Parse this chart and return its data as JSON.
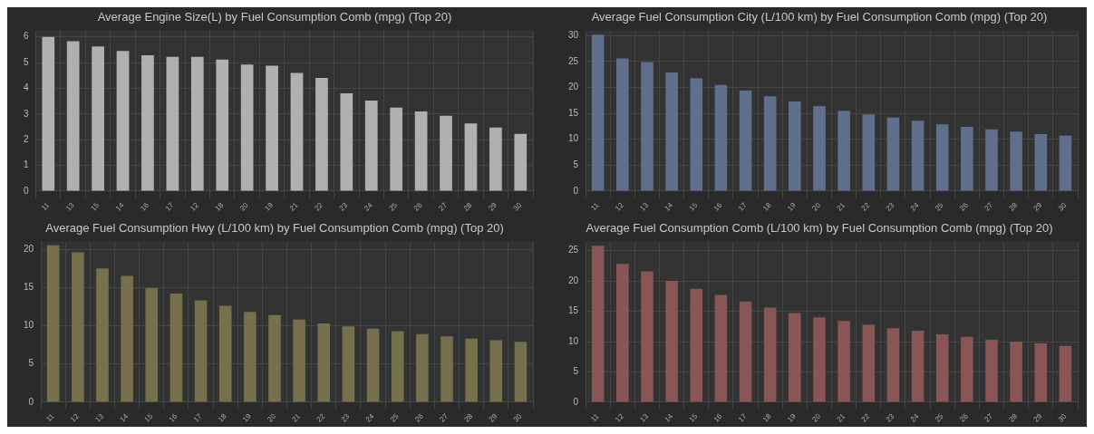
{
  "chart_data": [
    {
      "type": "bar",
      "title": "Average Engine Size(L) by Fuel Consumption Comb (mpg) (Top 20)",
      "categories": [
        "11",
        "13",
        "15",
        "14",
        "16",
        "17",
        "12",
        "18",
        "20",
        "19",
        "21",
        "22",
        "23",
        "24",
        "25",
        "26",
        "27",
        "28",
        "29",
        "30"
      ],
      "values": [
        6.0,
        5.83,
        5.63,
        5.45,
        5.28,
        5.22,
        5.22,
        5.12,
        4.92,
        4.88,
        4.6,
        4.4,
        3.8,
        3.52,
        3.25,
        3.1,
        2.93,
        2.63,
        2.47,
        2.23
      ],
      "color": "#b0b0b0",
      "ylim": [
        0,
        6.25
      ],
      "yticks": [
        0,
        1,
        2,
        3,
        4,
        5,
        6
      ],
      "grid": true,
      "legend": false
    },
    {
      "type": "bar",
      "title": "Average Fuel Consumption City (L/100 km) by Fuel Consumption Comb (mpg) (Top 20)",
      "categories": [
        "11",
        "12",
        "13",
        "14",
        "15",
        "16",
        "17",
        "18",
        "19",
        "20",
        "21",
        "22",
        "23",
        "24",
        "25",
        "26",
        "27",
        "28",
        "29",
        "30"
      ],
      "values": [
        30.2,
        25.6,
        24.9,
        22.9,
        21.8,
        20.5,
        19.4,
        18.3,
        17.3,
        16.4,
        15.5,
        14.8,
        14.2,
        13.6,
        12.9,
        12.4,
        11.9,
        11.5,
        11.0,
        10.7
      ],
      "color": "#5f6f8c",
      "ylim": [
        0,
        31
      ],
      "yticks": [
        0,
        5,
        10,
        15,
        20,
        25,
        30
      ],
      "grid": true,
      "legend": false
    },
    {
      "type": "bar",
      "title": "Average Fuel Consumption Hwy (L/100 km) by Fuel Consumption Comb (mpg) (Top 20)",
      "categories": [
        "11",
        "12",
        "13",
        "14",
        "15",
        "16",
        "17",
        "18",
        "19",
        "20",
        "21",
        "22",
        "23",
        "24",
        "25",
        "26",
        "27",
        "28",
        "29",
        "30"
      ],
      "values": [
        20.5,
        19.6,
        17.5,
        16.5,
        14.9,
        14.2,
        13.3,
        12.6,
        11.8,
        11.4,
        10.8,
        10.3,
        9.9,
        9.6,
        9.3,
        8.9,
        8.6,
        8.3,
        8.1,
        7.9
      ],
      "color": "#77704c",
      "ylim": [
        0,
        21
      ],
      "yticks": [
        0,
        5,
        10,
        15,
        20
      ],
      "grid": true,
      "legend": false
    },
    {
      "type": "bar",
      "title": "Average Fuel Consumption Comb (L/100 km) by Fuel Consumption Comb (mpg) (Top 20)",
      "categories": [
        "11",
        "12",
        "13",
        "14",
        "15",
        "16",
        "17",
        "18",
        "19",
        "20",
        "21",
        "22",
        "23",
        "24",
        "25",
        "26",
        "27",
        "28",
        "29",
        "30"
      ],
      "values": [
        25.8,
        22.8,
        21.6,
        20.0,
        18.7,
        17.7,
        16.6,
        15.6,
        14.7,
        14.0,
        13.4,
        12.8,
        12.2,
        11.8,
        11.2,
        10.8,
        10.3,
        10.0,
        9.7,
        9.3
      ],
      "color": "#8a5555",
      "ylim": [
        0,
        26.5
      ],
      "yticks": [
        0,
        5,
        10,
        15,
        20,
        25
      ],
      "grid": true,
      "legend": false
    }
  ]
}
